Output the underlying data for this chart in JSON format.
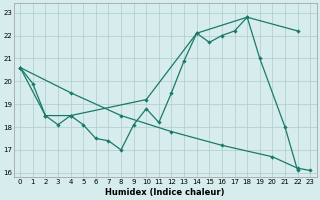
{
  "xlabel": "Humidex (Indice chaleur)",
  "bg_color": "#d7ecec",
  "grid_color": "#b0cccc",
  "line_color": "#1a7a6a",
  "xlim": [
    -0.5,
    23.5
  ],
  "ylim": [
    15.8,
    23.4
  ],
  "yticks": [
    16,
    17,
    18,
    19,
    20,
    21,
    22,
    23
  ],
  "xticks": [
    0,
    1,
    2,
    3,
    4,
    5,
    6,
    7,
    8,
    9,
    10,
    11,
    12,
    13,
    14,
    15,
    16,
    17,
    18,
    19,
    20,
    21,
    22,
    23
  ],
  "line1": {
    "x": [
      0,
      1,
      2,
      3,
      4,
      5,
      6,
      7,
      8,
      9,
      10,
      11,
      12,
      13,
      14,
      15,
      16,
      17,
      18,
      19,
      21,
      22
    ],
    "y": [
      20.6,
      19.9,
      18.5,
      18.1,
      18.5,
      18.1,
      17.5,
      17.4,
      17.0,
      18.1,
      18.8,
      18.2,
      19.5,
      20.9,
      22.1,
      21.7,
      22.0,
      22.2,
      22.8,
      21.0,
      18.0,
      16.1
    ]
  },
  "line2": {
    "x": [
      0,
      2,
      4,
      10,
      14,
      18,
      22
    ],
    "y": [
      20.6,
      18.5,
      18.5,
      19.2,
      22.1,
      22.8,
      22.2
    ]
  },
  "line3": {
    "x": [
      0,
      4,
      8,
      12,
      16,
      20,
      22,
      23
    ],
    "y": [
      20.6,
      19.5,
      18.5,
      17.8,
      17.2,
      16.7,
      16.2,
      16.1
    ]
  }
}
